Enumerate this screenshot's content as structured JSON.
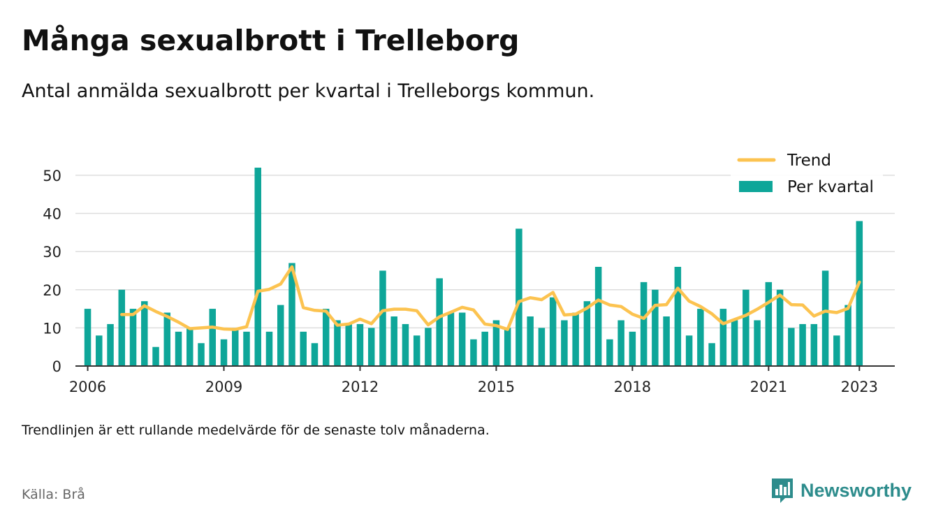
{
  "header": {
    "title": "Många sexualbrott i Trelleborg",
    "subtitle": "Antal anmälda sexualbrott per kvartal i Trelleborgs kommun."
  },
  "footer": {
    "note": "Trendlinjen är ett rullande medelvärde för de senaste tolv månaderna.",
    "source": "Källa: Brå",
    "brand": "Newsworthy"
  },
  "colors": {
    "bars": "#0ea699",
    "trend": "#fcc350",
    "grid": "#dddddd",
    "axis": "#333333",
    "brand": "#2d8c8c"
  },
  "chart_data": {
    "type": "bar",
    "xlim": [
      2005.73,
      2023.78
    ],
    "ylim": [
      0,
      52
    ],
    "y_ticks": [
      0,
      10,
      20,
      30,
      40,
      50
    ],
    "x_ticks": [
      2006,
      2009,
      2012,
      2015,
      2018,
      2021,
      2023
    ],
    "grid": true,
    "legend_position": "top-right",
    "legend": [
      {
        "label": "Trend",
        "kind": "line"
      },
      {
        "label": "Per kvartal",
        "kind": "bar"
      }
    ],
    "series": [
      {
        "name": "Per kvartal",
        "type": "bar",
        "start_year": 2006,
        "quarter_step": 0.25,
        "values": [
          15,
          8,
          11,
          20,
          15,
          17,
          5,
          14,
          9,
          10,
          6,
          15,
          7,
          10,
          9,
          52,
          9,
          16,
          27,
          9,
          6,
          15,
          12,
          11,
          11,
          10,
          25,
          13,
          11,
          8,
          10,
          23,
          14,
          14,
          7,
          9,
          12,
          10,
          36,
          13,
          10,
          18,
          12,
          14,
          17,
          26,
          7,
          12,
          9,
          22,
          20,
          13,
          26,
          8,
          15,
          6,
          15,
          12,
          20,
          12,
          22,
          20,
          10,
          11,
          11,
          25,
          8,
          16,
          38
        ]
      },
      {
        "name": "Trend",
        "type": "line",
        "start_year": 2006.75,
        "quarter_step": 0.25,
        "values": [
          13.5,
          13.5,
          15.8,
          14.3,
          13,
          11.5,
          9.8,
          10,
          10.2,
          9.7,
          9.6,
          10.3,
          19.6,
          20.1,
          21.5,
          26,
          15.3,
          14.6,
          14.4,
          10.7,
          11,
          12.3,
          11.1,
          14.5,
          14.9,
          14.9,
          14.5,
          10.8,
          12.9,
          14.1,
          15.4,
          14.7,
          11,
          10.6,
          9.6,
          16.9,
          17.9,
          17.4,
          19.3,
          13.4,
          13.6,
          15.2,
          17.3,
          16,
          15.6,
          13.6,
          12.5,
          15.9,
          16.1,
          20.4,
          17,
          15.6,
          13.7,
          11.1,
          12.2,
          13.3,
          14.9,
          16.7,
          18.6,
          16.1,
          16,
          13.1,
          14.4,
          14,
          15.1,
          22
        ]
      }
    ]
  }
}
